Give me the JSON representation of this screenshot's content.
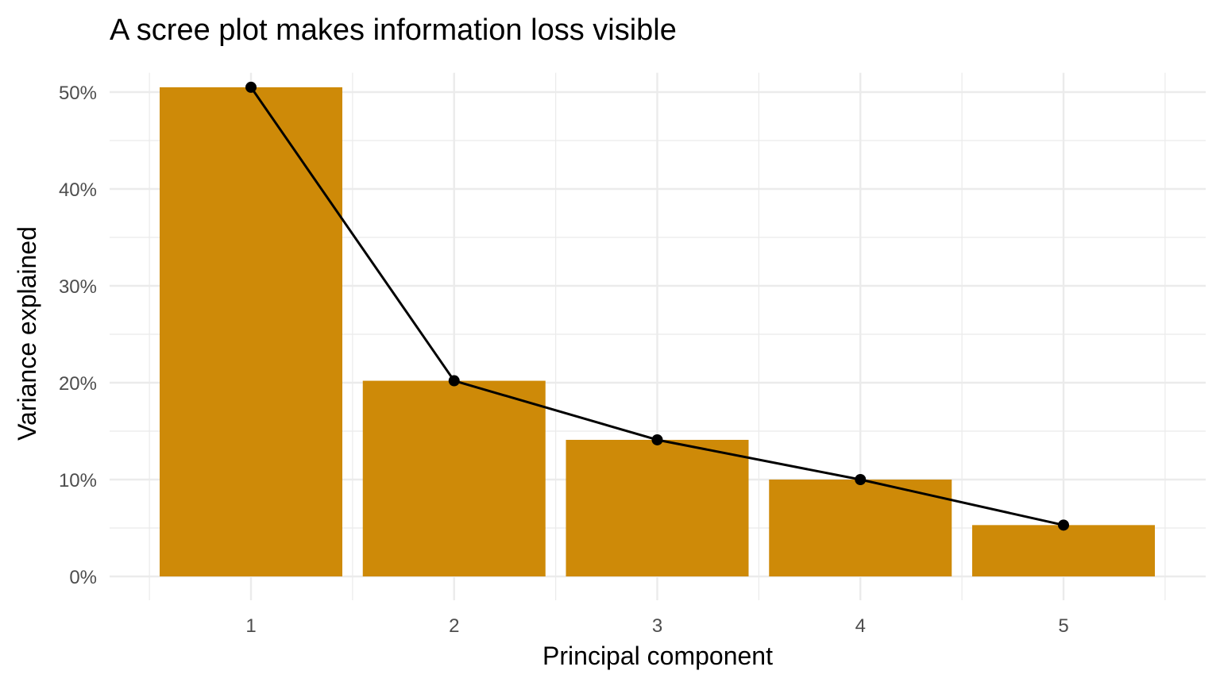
{
  "chart_data": {
    "type": "bar",
    "title": "A scree plot makes information loss visible",
    "xlabel": "Principal component",
    "ylabel": "Variance explained",
    "categories": [
      "1",
      "2",
      "3",
      "4",
      "5"
    ],
    "values": [
      50.5,
      20.2,
      14.1,
      10.0,
      5.3
    ],
    "ylim": [
      0,
      52
    ],
    "yticks": [
      0,
      10,
      20,
      30,
      40,
      50
    ],
    "ytick_labels": [
      "0%",
      "10%",
      "20%",
      "30%",
      "40%",
      "50%"
    ],
    "overlay": "line-with-points",
    "grid": true,
    "legend": "none",
    "colors": {
      "bar": "#CE8A08",
      "line": "#000000",
      "grid": "#EBEBEB"
    }
  }
}
